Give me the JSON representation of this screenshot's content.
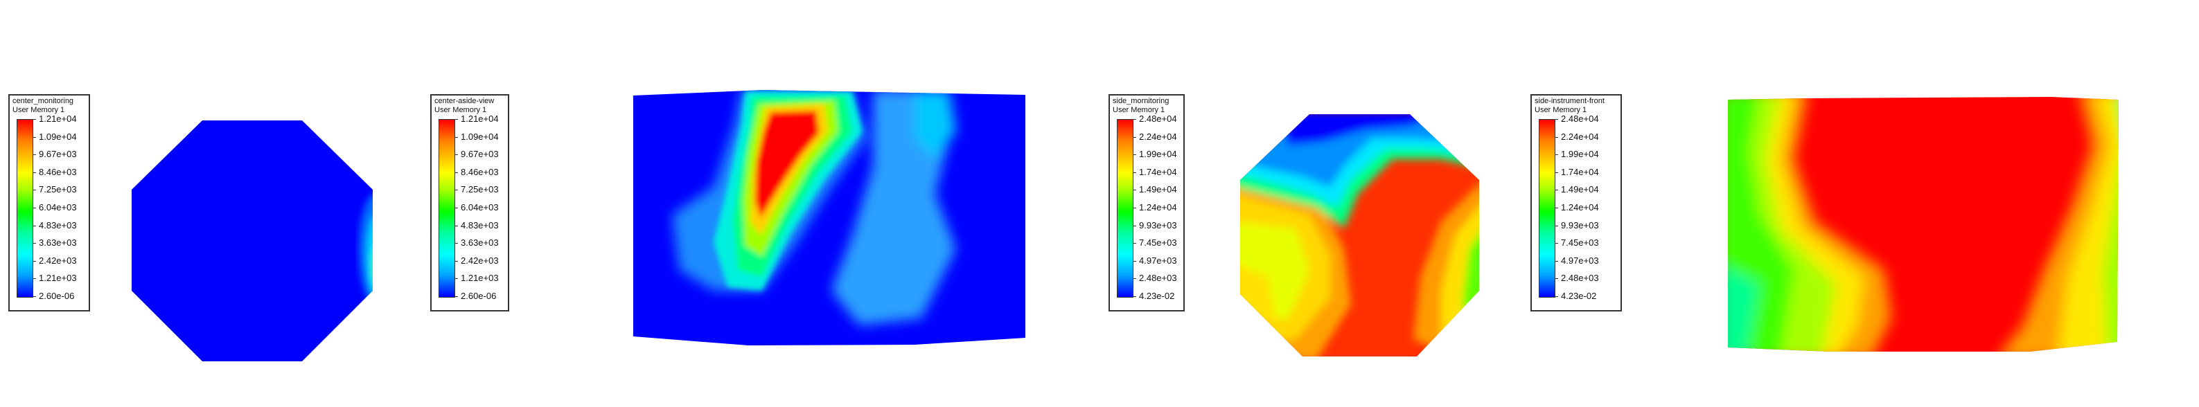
{
  "chart_data": [
    {
      "type": "heatmap",
      "title": "center_monitoring",
      "subtitle": "User Memory 1",
      "colorbar_ticks": [
        "1.21e+04",
        "1.09e+04",
        "9.67e+03",
        "8.46e+03",
        "7.25e+03",
        "6.04e+03",
        "4.83e+03",
        "3.63e+03",
        "2.42e+03",
        "1.21e+03",
        "2.60e-06"
      ],
      "range": [
        2.6e-06,
        12100
      ],
      "colormap": [
        "#0000ff",
        "#00ffff",
        "#00ff00",
        "#ffff00",
        "#ff0000"
      ],
      "shape": "octagon"
    },
    {
      "type": "heatmap",
      "title": "center-aside-view",
      "subtitle": "User Memory 1",
      "colorbar_ticks": [
        "1.21e+04",
        "1.09e+04",
        "9.67e+03",
        "8.46e+03",
        "7.25e+03",
        "6.04e+03",
        "4.83e+03",
        "3.63e+03",
        "2.42e+03",
        "1.21e+03",
        "2.60e-06"
      ],
      "range": [
        2.6e-06,
        12100
      ],
      "colormap": [
        "#0000ff",
        "#00ffff",
        "#00ff00",
        "#ffff00",
        "#ff0000"
      ],
      "shape": "rectangle"
    },
    {
      "type": "heatmap",
      "title": "side_mornitoring",
      "subtitle": "User Memory 1",
      "colorbar_ticks": [
        "2.48e+04",
        "2.24e+04",
        "1.99e+04",
        "1.74e+04",
        "1.49e+04",
        "1.24e+04",
        "9.93e+03",
        "7.45e+03",
        "4.97e+03",
        "2.48e+03",
        "4.23e-02"
      ],
      "range": [
        0.0423,
        24800
      ],
      "colormap": [
        "#0000ff",
        "#00ffff",
        "#00ff00",
        "#ffff00",
        "#ff0000"
      ],
      "shape": "octagon"
    },
    {
      "type": "heatmap",
      "title": "side-instrument-front",
      "subtitle": "User Memory 1",
      "colorbar_ticks": [
        "2.48e+04",
        "2.24e+04",
        "1.99e+04",
        "1.74e+04",
        "1.49e+04",
        "1.24e+04",
        "9.93e+03",
        "7.45e+03",
        "4.97e+03",
        "2.48e+03",
        "4.23e-02"
      ],
      "range": [
        0.0423,
        24800
      ],
      "colormap": [
        "#0000ff",
        "#00ffff",
        "#00ff00",
        "#ffff00",
        "#ff0000"
      ],
      "shape": "rectangle"
    }
  ]
}
